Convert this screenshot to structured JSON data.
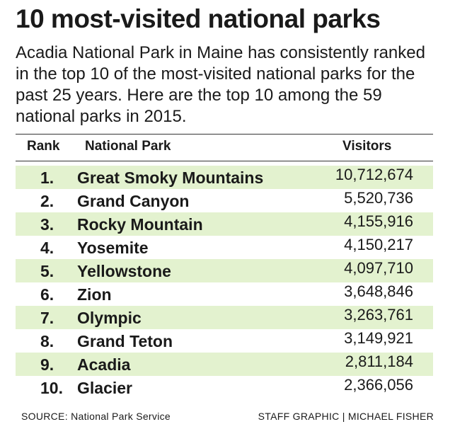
{
  "chart_data": {
    "type": "table",
    "title": "10 most-visited national parks",
    "subtitle": "Acadia National Park in Maine has consistently ranked in the top 10 of the most-visited national parks for the past 25 years. Here are the top 10 among the 59 national parks in 2015.",
    "columns": [
      "Rank",
      "National Park",
      "Visitors"
    ],
    "rows": [
      {
        "rank": "1.",
        "park": "Great Smoky Mountains",
        "visitors": "10,712,674"
      },
      {
        "rank": "2.",
        "park": "Grand Canyon",
        "visitors": "5,520,736"
      },
      {
        "rank": "3.",
        "park": "Rocky Mountain",
        "visitors": "4,155,916"
      },
      {
        "rank": "4.",
        "park": "Yosemite",
        "visitors": "4,150,217"
      },
      {
        "rank": "5.",
        "park": "Yellowstone",
        "visitors": "4,097,710"
      },
      {
        "rank": "6.",
        "park": "Zion",
        "visitors": "3,648,846"
      },
      {
        "rank": "7.",
        "park": "Olympic",
        "visitors": "3,263,761"
      },
      {
        "rank": "8.",
        "park": "Grand Teton",
        "visitors": "3,149,921"
      },
      {
        "rank": "9.",
        "park": "Acadia",
        "visitors": "2,811,184"
      },
      {
        "rank": "10.",
        "park": "Glacier",
        "visitors": "2,366,056"
      }
    ],
    "source": "SOURCE: National Park Service",
    "credit": "STAFF GRAPHIC | MICHAEL FISHER"
  },
  "colors": {
    "row_highlight": "#e3f2cf",
    "text": "#1a1a1a",
    "rule": "#333333"
  }
}
